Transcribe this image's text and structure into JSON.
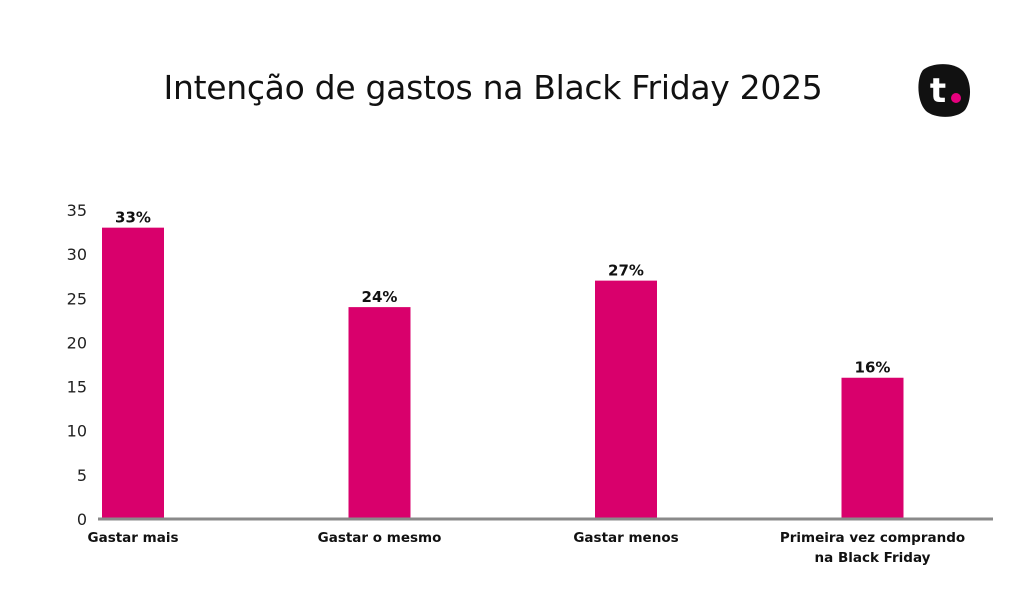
{
  "chart_data": {
    "type": "bar",
    "title": "Intenção de gastos na Black Friday 2025",
    "categories": [
      [
        "Gastar mais"
      ],
      [
        "Gastar o mesmo"
      ],
      [
        "Gastar menos"
      ],
      [
        "Primeira vez comprando",
        "na Black Friday"
      ]
    ],
    "values": [
      33,
      24,
      27,
      16
    ],
    "value_labels": [
      "33%",
      "24%",
      "27%",
      "16%"
    ],
    "yticks": [
      "0",
      "5",
      "10",
      "15",
      "20",
      "25",
      "30",
      "35"
    ],
    "ylim": [
      0,
      35
    ],
    "xlabel": "",
    "ylabel": "",
    "grid": false,
    "bar_color": "#d9006c"
  },
  "logo": {
    "letter": "t",
    "bg_color": "#111111",
    "dot_color": "#e6007e"
  }
}
